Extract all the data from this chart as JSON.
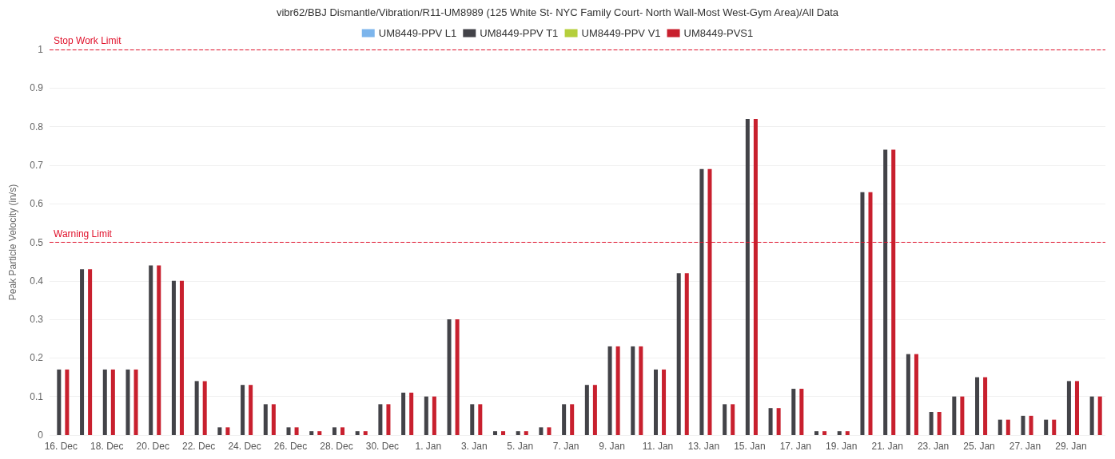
{
  "chart_data": {
    "type": "bar",
    "title": "vibr62/BBJ Dismantle/Vibration/R11-UM8989 (125 White St- NYC Family Court- North Wall-Most West-Gym Area)/All Data",
    "ylabel": "Peak Particle Velocity (in/s)",
    "categories": [
      "16. Dec",
      null,
      "18. Dec",
      null,
      "20. Dec",
      null,
      "22. Dec",
      null,
      "24. Dec",
      null,
      "26. Dec",
      null,
      "28. Dec",
      null,
      "30. Dec",
      null,
      "1. Jan",
      null,
      "3. Jan",
      null,
      "5. Jan",
      null,
      "7. Jan",
      null,
      "9. Jan",
      null,
      "11. Jan",
      null,
      "13. Jan",
      null,
      "15. Jan",
      null,
      "17. Jan",
      null,
      "19. Jan",
      null,
      "21. Jan",
      null,
      "23. Jan",
      null,
      "25. Jan",
      null,
      "27. Jan",
      null,
      "29. Jan",
      null
    ],
    "series": [
      {
        "name": "UM8449-PPV L1",
        "color": "#7cb5ec",
        "values": [
          null,
          null,
          null,
          null,
          null,
          null,
          null,
          null,
          null,
          null,
          null,
          null,
          null,
          null,
          null,
          null,
          null,
          null,
          null,
          null,
          null,
          null,
          null,
          null,
          null,
          null,
          null,
          null,
          null,
          null,
          null,
          null,
          null,
          null,
          null,
          null,
          null,
          null,
          null,
          null,
          null,
          null,
          null,
          null,
          null,
          null
        ]
      },
      {
        "name": "UM8449-PPV T1",
        "color": "#434348",
        "values": [
          0.17,
          0.43,
          0.17,
          0.17,
          0.44,
          0.4,
          0.14,
          0.02,
          0.13,
          0.08,
          0.02,
          0.01,
          0.02,
          0.01,
          0.08,
          0.11,
          0.1,
          0.3,
          0.08,
          0.01,
          0.01,
          0.02,
          0.08,
          0.13,
          0.23,
          0.23,
          0.17,
          0.42,
          0.69,
          0.08,
          0.82,
          0.07,
          0.12,
          0.01,
          0.01,
          0.63,
          0.74,
          0.21,
          0.06,
          0.1,
          0.15,
          0.04,
          0.05,
          0.04,
          0.14,
          0.1
        ]
      },
      {
        "name": "UM8449-PPV V1",
        "color": "#b5cf3c",
        "values": [
          null,
          null,
          null,
          null,
          null,
          null,
          null,
          null,
          null,
          null,
          null,
          null,
          null,
          null,
          null,
          null,
          null,
          null,
          null,
          null,
          null,
          null,
          null,
          null,
          null,
          null,
          null,
          null,
          null,
          null,
          null,
          null,
          null,
          null,
          null,
          null,
          null,
          null,
          null,
          null,
          null,
          null,
          null,
          null,
          null,
          null
        ]
      },
      {
        "name": "UM8449-PVS1",
        "color": "#c8202e",
        "values": [
          0.17,
          0.43,
          0.17,
          0.17,
          0.44,
          0.4,
          0.14,
          0.02,
          0.13,
          0.08,
          0.02,
          0.01,
          0.02,
          0.01,
          0.08,
          0.11,
          0.1,
          0.3,
          0.08,
          0.01,
          0.01,
          0.02,
          0.08,
          0.13,
          0.23,
          0.23,
          0.17,
          0.42,
          0.69,
          0.08,
          0.82,
          0.07,
          0.12,
          0.01,
          0.01,
          0.63,
          0.74,
          0.21,
          0.06,
          0.1,
          0.15,
          0.04,
          0.05,
          0.04,
          0.14,
          0.1
        ]
      }
    ],
    "ylim": [
      0,
      1
    ],
    "yticks": [
      0,
      0.1,
      0.2,
      0.3,
      0.4,
      0.5,
      0.6,
      0.7,
      0.8,
      0.9,
      1
    ],
    "grid": "y",
    "legend": "top",
    "ref_lines": [
      {
        "axis": "y",
        "value": 1,
        "label": "Stop Work Limit",
        "color": "#e0102a",
        "line_style": "dashed"
      },
      {
        "axis": "y",
        "value": 0.5,
        "label": "Warning Limit",
        "color": "#e0102a",
        "line_style": "dashed"
      }
    ]
  }
}
